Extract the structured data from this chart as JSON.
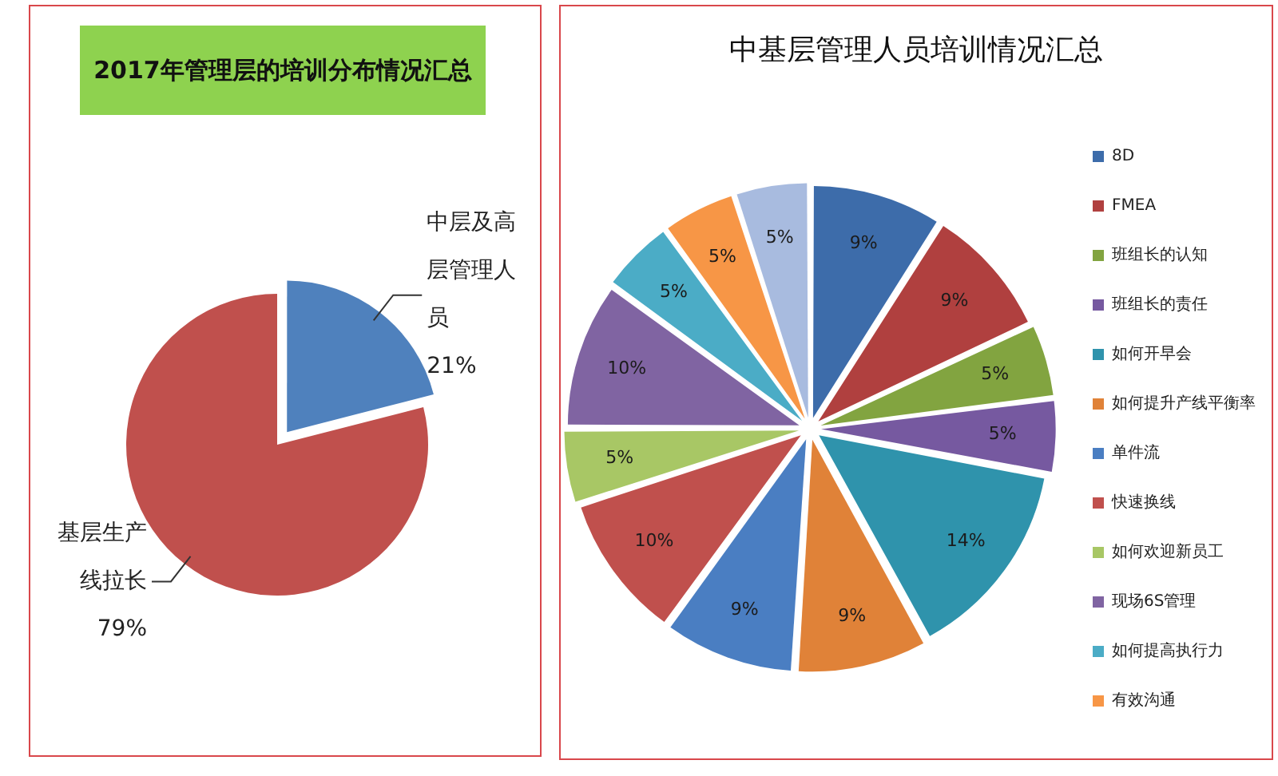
{
  "chart_data": [
    {
      "type": "pie",
      "title": "2017年管理层的培训分布情况汇总",
      "categories": [
        "中层及高层管理人员",
        "基层生产线拉长"
      ],
      "values": [
        21,
        79
      ],
      "colors": [
        "#4f81bd",
        "#c0504d"
      ],
      "value_labels": [
        "21%",
        "79%"
      ],
      "legend": false
    },
    {
      "type": "pie",
      "title": "中基层管理人员培训情况汇总",
      "categories": [
        "8D",
        "FMEA",
        "班组长的认知",
        "班组长的责任",
        "如何开早会",
        "如何提升产线平衡率",
        "单件流",
        "快速换线",
        "如何欢迎新员工",
        "现场6S管理",
        "如何提高执行力",
        "有效沟通",
        null
      ],
      "values": [
        9,
        9,
        5,
        5,
        14,
        9,
        9,
        10,
        5,
        10,
        5,
        5,
        5
      ],
      "colors": [
        "#3d6caa",
        "#b0403f",
        "#82a440",
        "#7659a0",
        "#2f93ac",
        "#e08238",
        "#4a7ec2",
        "#c0504d",
        "#a8c765",
        "#8064a2",
        "#4bacc6",
        "#f79646",
        "#a8bbdf"
      ],
      "value_labels": [
        "9%",
        "9%",
        "5%",
        "5%",
        "14%",
        "9%",
        "9%",
        "10%",
        "5%",
        "10%",
        "5%",
        "5%",
        "5%"
      ],
      "legend": "right"
    }
  ]
}
